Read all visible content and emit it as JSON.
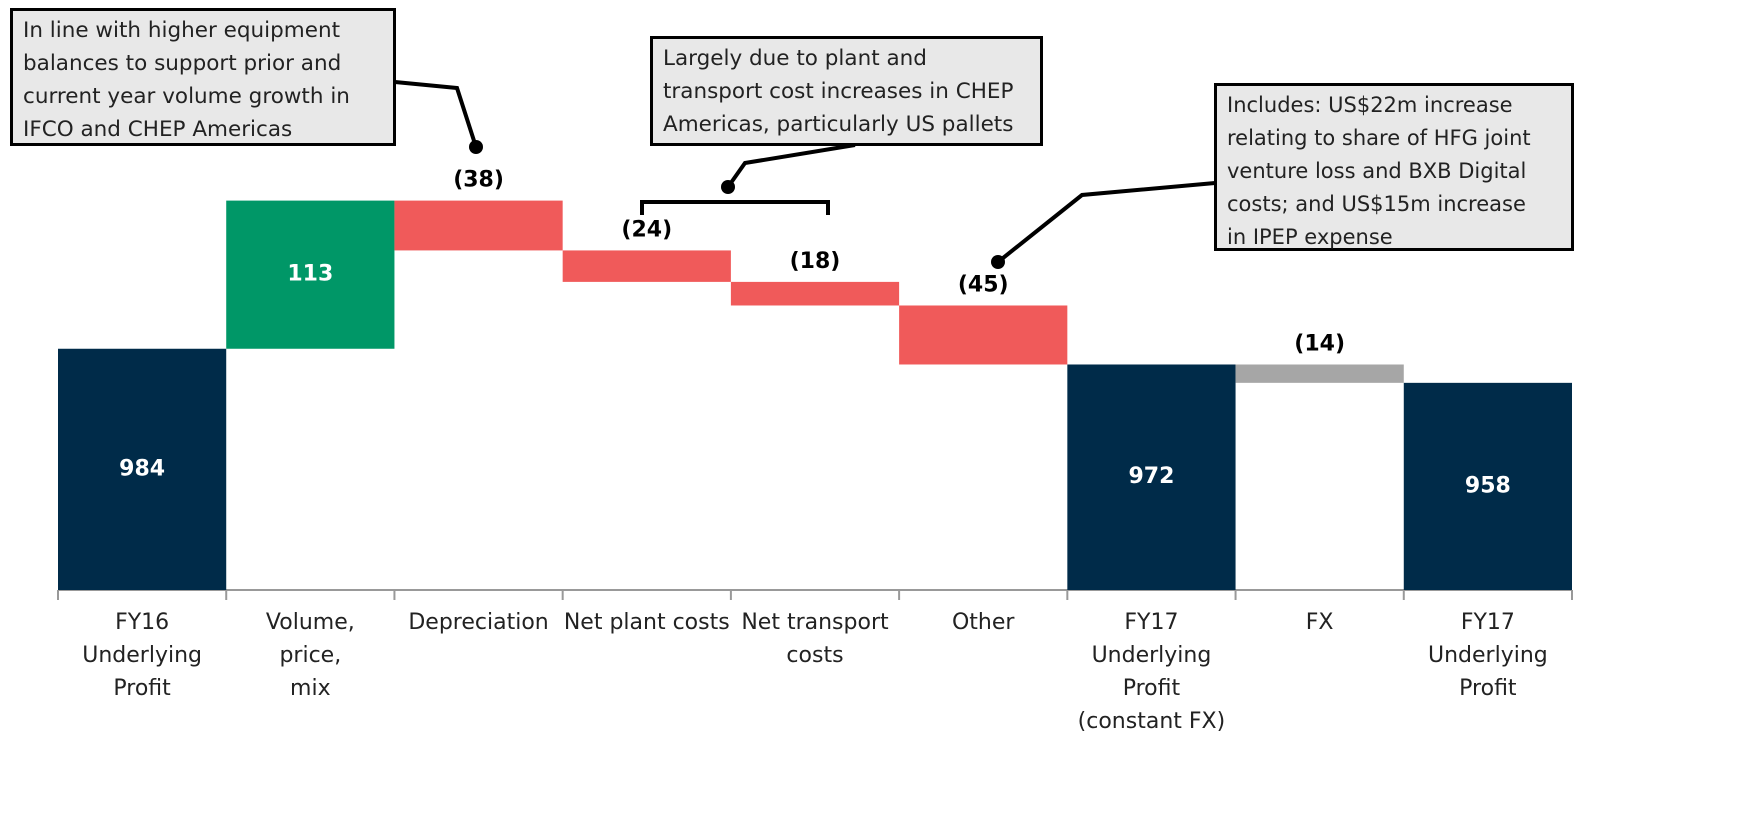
{
  "chart_data": {
    "type": "waterfall",
    "categories": [
      "FY16\nUnderlying\nProfit",
      "Volume,\nprice,\nmix",
      "Depreciation",
      "Net plant costs",
      "Net transport\ncosts",
      "Other",
      "FY17\nUnderlying\nProfit\n(constant FX)",
      "FX",
      "FY17\nUnderlying\nProfit"
    ],
    "values": [
      984,
      113,
      -38,
      -24,
      -18,
      -45,
      972,
      -14,
      958
    ],
    "value_labels": [
      "984",
      "113",
      "(38)",
      "(24)",
      "(18)",
      "(45)",
      "972",
      "(14)",
      "958"
    ],
    "is_total": [
      true,
      false,
      false,
      false,
      false,
      false,
      true,
      false,
      true
    ],
    "colors": [
      "#002b49",
      "#009767",
      "#f05a5a",
      "#f05a5a",
      "#f05a5a",
      "#f05a5a",
      "#002b49",
      "#a6a6a6",
      "#002b49"
    ],
    "ylim": [
      800,
      1250
    ],
    "annotations": [
      "In line with higher equipment\nbalances to support prior and\ncurrent year volume growth in\nIFCO and CHEP Americas",
      "Largely due to plant and\ntransport cost increases in CHEP\nAmericas, particularly US pallets",
      "Includes: US$22m increase\nrelating to share of HFG joint\nventure loss and BXB Digital\ncosts; and US$15m increase\nin IPEP expense"
    ]
  }
}
